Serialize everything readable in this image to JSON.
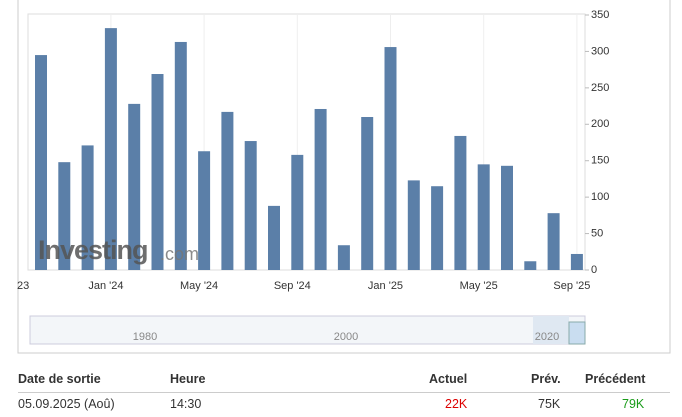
{
  "chart_data": {
    "type": "bar",
    "categories": [
      null,
      null,
      null,
      "Jan '24",
      null,
      null,
      null,
      "May '24",
      null,
      null,
      null,
      "Sep '24",
      null,
      null,
      null,
      "Jan '25",
      null,
      null,
      null,
      "May '25",
      null,
      null,
      null,
      "Sep '25"
    ],
    "values": [
      295,
      148,
      171,
      332,
      228,
      269,
      313,
      163,
      217,
      177,
      88,
      158,
      221,
      34,
      210,
      306,
      123,
      115,
      184,
      145,
      143,
      12,
      78,
      22
    ],
    "color": "#5b7fa8",
    "ylim": [
      0,
      350
    ],
    "yticks": [
      0,
      50,
      100,
      150,
      200,
      250,
      300,
      350
    ],
    "clipped_tick_label": "23",
    "watermark": "Investing",
    "watermark_suffix": ".com",
    "navigator_labels": [
      "1980",
      "2000",
      "2020"
    ]
  },
  "table": {
    "headers": [
      "Date de sortie",
      "Heure",
      "Actuel",
      "Prév.",
      "Précédent"
    ],
    "rows": [
      [
        "05.09.2025 (Aoû)",
        "14:30",
        "22K",
        "75K",
        "79K"
      ]
    ]
  }
}
